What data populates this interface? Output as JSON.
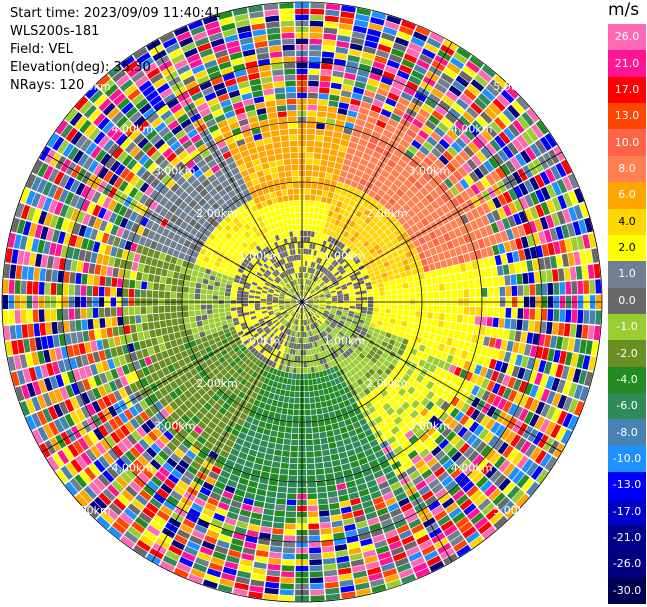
{
  "info": {
    "start_time": "Start time: 2023/09/09 11:40:41",
    "station": "WLS200s-181",
    "field": "Field: VEL",
    "elevation": "Elevation(deg): 35.30",
    "nrays": "NRays: 120"
  },
  "colorbar": {
    "unit": "m/s",
    "levels": [
      {
        "label": "26.0",
        "color": "#ff69b4"
      },
      {
        "label": "21.0",
        "color": "#ff1493"
      },
      {
        "label": "17.0",
        "color": "#ff0000"
      },
      {
        "label": "13.0",
        "color": "#ff4500"
      },
      {
        "label": "10.0",
        "color": "#ff6347"
      },
      {
        "label": "8.0",
        "color": "#ff7f50"
      },
      {
        "label": "6.0",
        "color": "#ffa500"
      },
      {
        "label": "4.0",
        "color": "#ffd700"
      },
      {
        "label": "2.0",
        "color": "#ffff00"
      },
      {
        "label": "1.0",
        "color": "#708090"
      },
      {
        "label": "0.0",
        "color": "#696969"
      },
      {
        "label": "-1.0",
        "color": "#9acd32"
      },
      {
        "label": "-2.0",
        "color": "#6b8e23"
      },
      {
        "label": "-4.0",
        "color": "#228b22"
      },
      {
        "label": "-6.0",
        "color": "#2e8b57"
      },
      {
        "label": "-8.0",
        "color": "#4682b4"
      },
      {
        "label": "-10.0",
        "color": "#1e90ff"
      },
      {
        "label": "-13.0",
        "color": "#0000ff"
      },
      {
        "label": "-17.0",
        "color": "#0000cd"
      },
      {
        "label": "-21.0",
        "color": "#00008b"
      },
      {
        "label": "-26.0",
        "color": "#000080"
      },
      {
        "label": "-30.0",
        "color": "#000050"
      }
    ]
  },
  "range_rings": {
    "labels": [
      "1.00km",
      "2.00km",
      "3.00km",
      "4.00km",
      "5.00km"
    ]
  }
}
